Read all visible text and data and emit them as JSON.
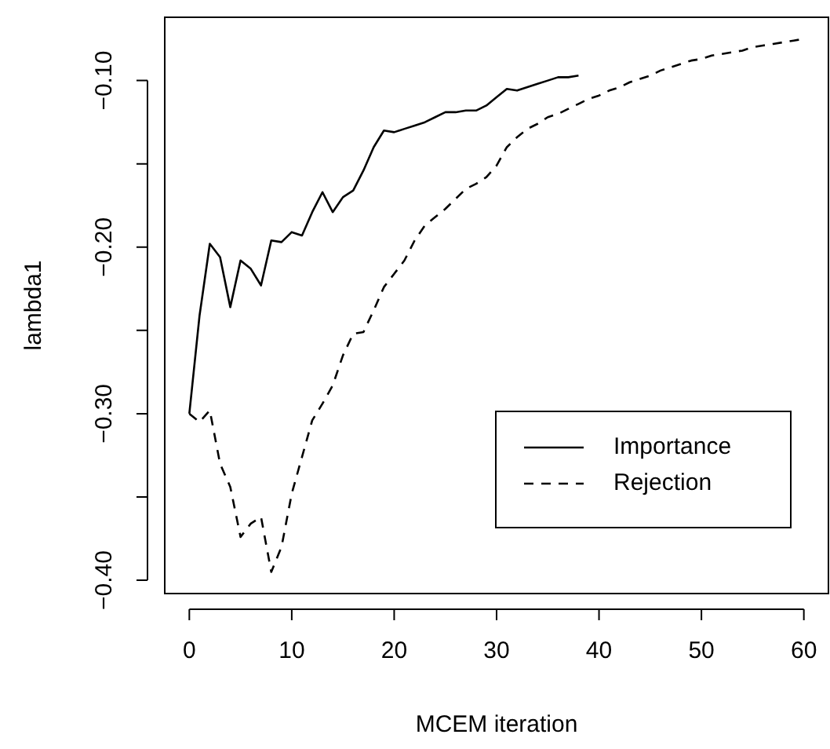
{
  "chart_data": {
    "type": "line",
    "xlabel": "MCEM iteration",
    "ylabel": "lambda1",
    "xlim": [
      -2.4,
      62.4
    ],
    "ylim": [
      -0.408,
      -0.062
    ],
    "xticks": [
      0,
      10,
      20,
      30,
      40,
      50,
      60
    ],
    "yticks": [
      {
        "value": -0.4,
        "label": "−0.40"
      },
      {
        "value": -0.35,
        "label": null
      },
      {
        "value": -0.3,
        "label": "−0.30"
      },
      {
        "value": -0.25,
        "label": null
      },
      {
        "value": -0.2,
        "label": "−0.20"
      },
      {
        "value": -0.15,
        "label": null
      },
      {
        "value": -0.1,
        "label": "−0.10"
      }
    ],
    "grid": false,
    "legend": "bottom right",
    "marker": "none",
    "series": [
      {
        "name": "Importance",
        "color": "#000000",
        "line_style": "solid",
        "x": [
          0,
          1,
          2,
          3,
          4,
          5,
          6,
          7,
          8,
          9,
          10,
          11,
          12,
          13,
          14,
          15,
          16,
          17,
          18,
          19,
          20,
          21,
          22,
          23,
          24,
          25,
          26,
          27,
          28,
          29,
          30,
          31,
          32,
          33,
          34,
          35,
          36,
          37,
          38
        ],
        "values": [
          -0.3,
          -0.241,
          -0.198,
          -0.206,
          -0.236,
          -0.208,
          -0.213,
          -0.223,
          -0.196,
          -0.197,
          -0.191,
          -0.193,
          -0.179,
          -0.167,
          -0.179,
          -0.17,
          -0.166,
          -0.154,
          -0.14,
          -0.13,
          -0.131,
          -0.129,
          -0.127,
          -0.125,
          -0.122,
          -0.119,
          -0.119,
          -0.118,
          -0.118,
          -0.115,
          -0.11,
          -0.105,
          -0.106,
          -0.104,
          -0.102,
          -0.1,
          -0.098,
          -0.098,
          -0.097
        ]
      },
      {
        "name": "Rejection",
        "color": "#000000",
        "line_style": "dashed",
        "x": [
          0,
          1,
          2,
          3,
          4,
          5,
          6,
          7,
          8,
          9,
          10,
          11,
          12,
          13,
          14,
          15,
          16,
          17,
          18,
          19,
          20,
          21,
          22,
          23,
          24,
          25,
          26,
          27,
          28,
          29,
          30,
          31,
          32,
          33,
          34,
          35,
          36,
          37,
          38,
          39,
          40,
          41,
          42,
          43,
          44,
          45,
          46,
          47,
          48,
          49,
          50,
          51,
          52,
          53,
          54,
          55,
          56,
          57,
          58,
          59,
          60
        ],
        "values": [
          -0.3,
          -0.305,
          -0.298,
          -0.33,
          -0.344,
          -0.374,
          -0.366,
          -0.362,
          -0.395,
          -0.38,
          -0.348,
          -0.326,
          -0.304,
          -0.294,
          -0.283,
          -0.265,
          -0.252,
          -0.251,
          -0.238,
          -0.224,
          -0.216,
          -0.208,
          -0.196,
          -0.187,
          -0.182,
          -0.177,
          -0.171,
          -0.165,
          -0.162,
          -0.158,
          -0.151,
          -0.14,
          -0.134,
          -0.129,
          -0.126,
          -0.122,
          -0.12,
          -0.117,
          -0.114,
          -0.111,
          -0.109,
          -0.106,
          -0.104,
          -0.101,
          -0.099,
          -0.097,
          -0.094,
          -0.092,
          -0.09,
          -0.088,
          -0.087,
          -0.085,
          -0.084,
          -0.083,
          -0.082,
          -0.08,
          -0.079,
          -0.078,
          -0.077,
          -0.076,
          -0.075
        ]
      }
    ]
  }
}
